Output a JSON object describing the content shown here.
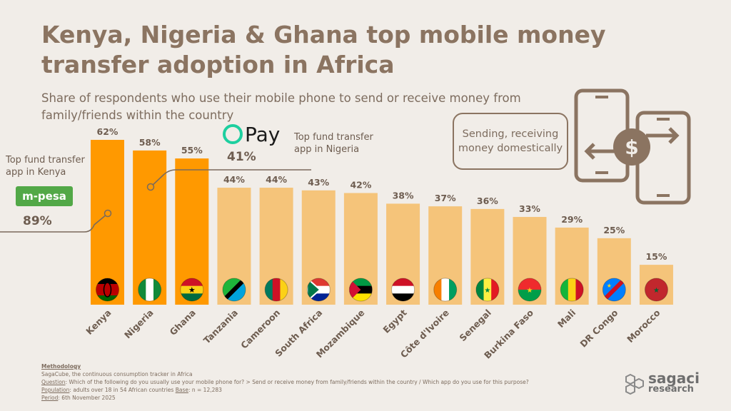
{
  "title": "Kenya, Nigeria & Ghana top mobile money transfer adoption in Africa",
  "subtitle": "Share of respondents who use their mobile phone to send or receive money from family/friends within the country",
  "callouts": {
    "kenya_text": "Top fund transfer app in Kenya",
    "kenya_brand": "m-pesa",
    "kenya_value": "89%",
    "nigeria_text": "Top fund transfer app in Nigeria",
    "nigeria_brand": "Pay",
    "nigeria_value": "41%",
    "pill_text": "Sending, receiving money domestically"
  },
  "colors": {
    "highlight": "#ff9900",
    "base": "#f5c47a",
    "text": "#7a6a5c",
    "accent": "#8b7461"
  },
  "methodology": {
    "heading": "Methodology",
    "line1": "SagaCube, the continuous consumption tracker in Africa",
    "q_label": "Question",
    "q_text": ": Which of the following do you usually use your mobile phone for?  > Send or receive money from family/friends within the country / Which app do you use for this purpose?",
    "pop_label": "Population",
    "pop_text": ": adults over 18 in 54 African countries  ",
    "base_label": "Base",
    "base_text": ": n = 12,283",
    "period_label": "Period",
    "period_text": ":  6th November 2025"
  },
  "logo": {
    "line1": "sagaci",
    "line2": "research"
  },
  "chart_data": {
    "type": "bar",
    "categories": [
      "Kenya",
      "Nigeria",
      "Ghana",
      "Tanzania",
      "Cameroon",
      "South Africa",
      "Mozambique",
      "Egypt",
      "Côte d'Ivoire",
      "Senegal",
      "Burkina Faso",
      "Mali",
      "DR Congo",
      "Morocco"
    ],
    "values": [
      62,
      58,
      55,
      44,
      44,
      43,
      42,
      38,
      37,
      36,
      33,
      29,
      25,
      15
    ],
    "labels": [
      "62%",
      "58%",
      "55%",
      "44%",
      "44%",
      "43%",
      "42%",
      "38%",
      "37%",
      "36%",
      "33%",
      "29%",
      "25%",
      "15%"
    ],
    "highlighted": [
      "Kenya",
      "Nigeria",
      "Ghana"
    ],
    "ylim": [
      0,
      62
    ]
  }
}
